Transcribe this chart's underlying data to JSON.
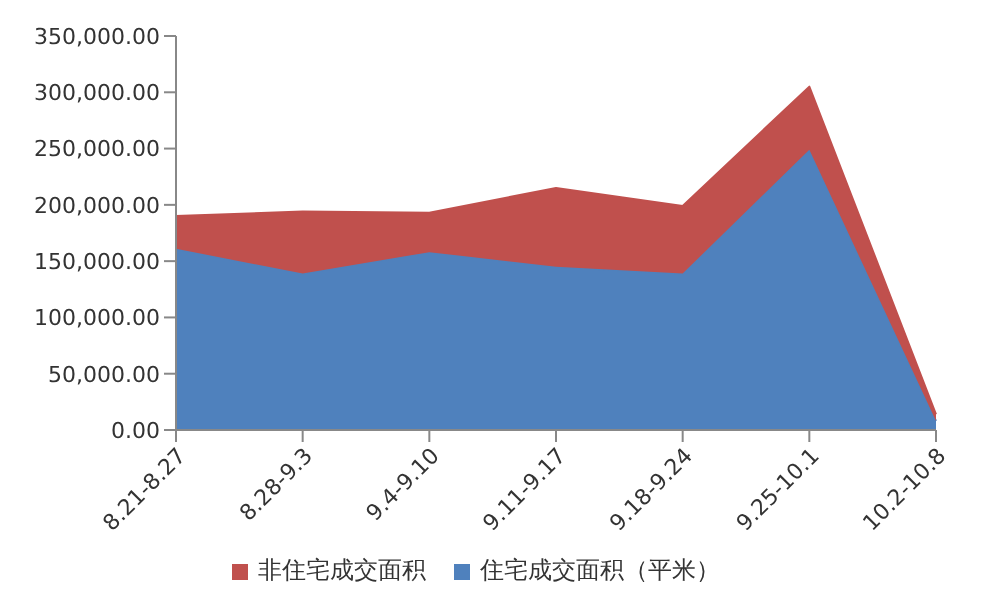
{
  "chart_data": {
    "type": "area",
    "stacked": true,
    "categories": [
      "8.21-8.27",
      "8.28-9.3",
      "9.4-9.10",
      "9.11-9.17",
      "9.18-9.24",
      "9.25-10.1",
      "10.2-10.8"
    ],
    "series": [
      {
        "name": "住宅成交面积（平米）",
        "color": "#4f81bd",
        "values": [
          161000,
          139000,
          158000,
          145000,
          139000,
          249000,
          8000
        ]
      },
      {
        "name": "非住宅成交面积",
        "color": "#c0504d",
        "values": [
          29000,
          55000,
          35000,
          70000,
          60000,
          56000,
          6000
        ]
      }
    ],
    "ylim": [
      0,
      350000
    ],
    "yticks": [
      {
        "value": 0,
        "label": "0.00"
      },
      {
        "value": 50000,
        "label": "50,000.00"
      },
      {
        "value": 100000,
        "label": "100,000.00"
      },
      {
        "value": 150000,
        "label": "150,000.00"
      },
      {
        "value": 200000,
        "label": "200,000.00"
      },
      {
        "value": 250000,
        "label": "250,000.00"
      },
      {
        "value": 300000,
        "label": "300,000.00"
      },
      {
        "value": 350000,
        "label": "350,000.00"
      }
    ],
    "grid": false,
    "legend": "bottom",
    "marker": "none"
  }
}
